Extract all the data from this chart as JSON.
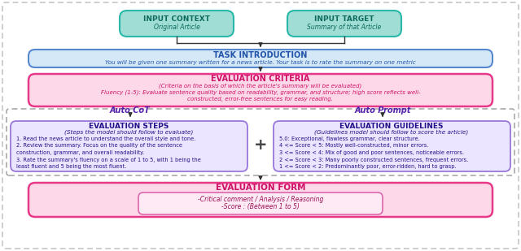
{
  "bg_color": "#ffffff",
  "input_context": {
    "title": "INPUT CONTEXT",
    "subtitle": "Original Article",
    "fill": "#a0ddd5",
    "edge": "#2ab8a8",
    "title_color": "#0d6b5e",
    "sub_color": "#0d6b5e"
  },
  "input_target": {
    "title": "INPUT TARGET",
    "subtitle": "Summary of that Article",
    "fill": "#a0ddd5",
    "edge": "#2ab8a8",
    "title_color": "#0d6b5e",
    "sub_color": "#0d6b5e"
  },
  "task_intro": {
    "title": "TASK INTRODUCTION",
    "body": "You will be given one summary written for a news article. Your task is to rate the summary on one metric",
    "fill": "#d4e8f8",
    "edge": "#5588cc",
    "title_color": "#2255aa",
    "body_color": "#2255aa"
  },
  "eval_criteria": {
    "title": "EVALUATION CRITERIA",
    "line1": "(Criteria on the basis of which the article's summary will be evaluated)",
    "line2": "Fluency (1-5): Evaluate sentence quality based on readability, grammar, and structure; high score reflects well-",
    "line3": "constructed, error-free sentences for easy reading.",
    "fill": "#fdd8e8",
    "edge": "#e83888",
    "title_color": "#cc1166",
    "body_color": "#cc1166"
  },
  "auto_cot_label": "Auto CoT",
  "auto_prompt_label": "Auto Prompt",
  "label_color": "#5522aa",
  "dashed_mid_fill": "#f0eeff",
  "dashed_mid_edge": "#8866bb",
  "eval_steps": {
    "title": "EVALUATION STEPS",
    "line0": "(Steps the model should follow to evaluate)",
    "line1": "1. Read the news article to understand the overall style and tone.",
    "line2": "2. Review the summary. Focus on the quality of the sentence",
    "line3": "construction, grammar, and overall readability.",
    "line4": "3. Rate the summary's fluency on a scale of 1 to 5, with 1 being the",
    "line5": "least fluent and 5 being the most fluent.",
    "fill": "#ece5ff",
    "edge": "#9977dd",
    "title_color": "#221188",
    "body_color": "#221188",
    "italic_color": "#221188"
  },
  "eval_guidelines": {
    "title": "EVALUATION GUIDELINES",
    "line0": "(Guidelines model should follow to score the article)",
    "line1": "5.0: Exceptional, flawless grammar, clear structure.",
    "line2": "4 <= Score < 5: Mostly well-constructed, minor errors.",
    "line3": "3 <= Score < 4: Mix of good and poor sentences, noticeable errors.",
    "line4": "2 <= Score < 3: Many poorly constructed sentences, frequent errors.",
    "line5": "1 <= Score < 2: Predominantly poor, error-ridden, hard to grasp.",
    "fill": "#ece5ff",
    "edge": "#9977dd",
    "title_color": "#221188",
    "body_color": "#221188"
  },
  "eval_form": {
    "title": "EVALUATION FORM",
    "inner_line1": "-Critical comment / Analysis / Reasoning",
    "inner_line2": "-Score : (Between 1 to 5)",
    "outer_fill": "#fdd8e8",
    "outer_edge": "#e83888",
    "inner_fill": "#feeaf4",
    "inner_edge": "#dd66aa",
    "title_color": "#cc1166",
    "body_color": "#991155"
  },
  "arrow_color": "#333333",
  "plus_color": "#444444",
  "outer_dash_color": "#bbbbbb",
  "mid_dash_color": "#999999"
}
